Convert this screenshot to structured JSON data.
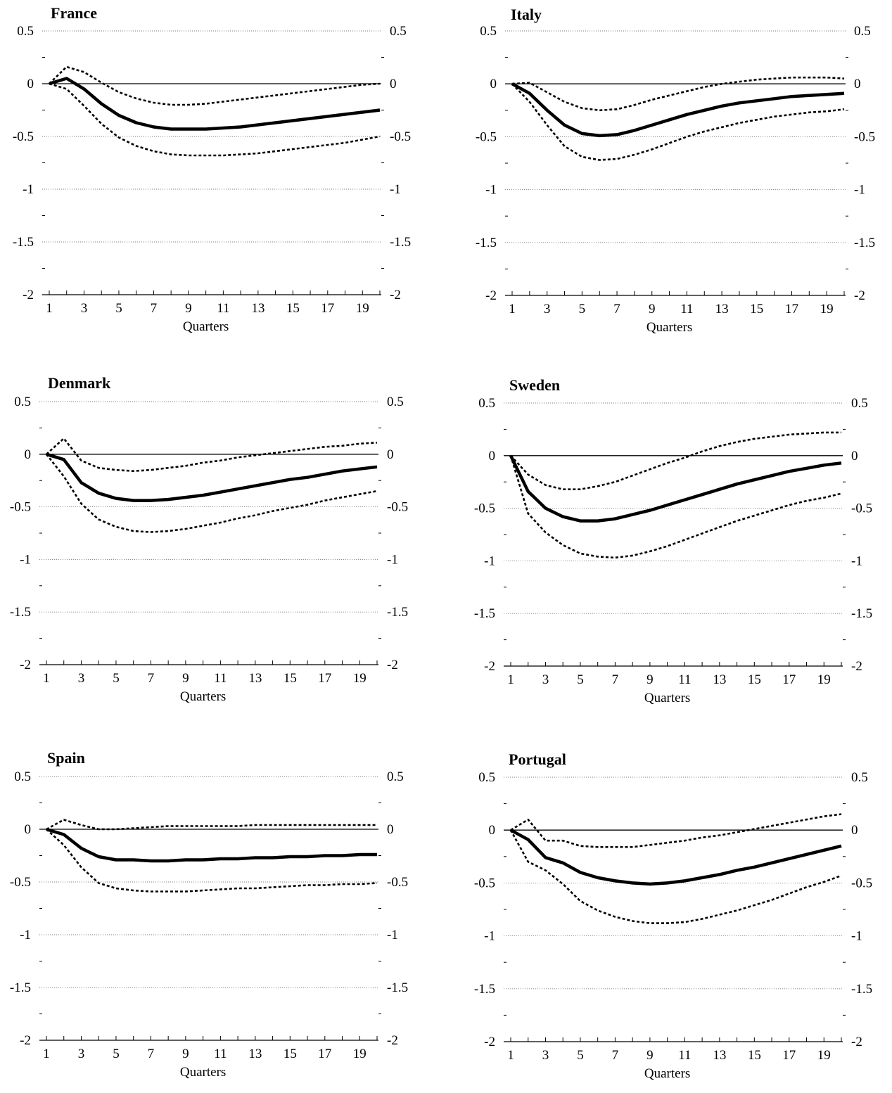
{
  "chart_data": [
    {
      "type": "line",
      "title": "France",
      "xlabel": "Quarters",
      "x": [
        1,
        2,
        3,
        4,
        5,
        6,
        7,
        8,
        9,
        10,
        11,
        12,
        13,
        14,
        15,
        16,
        17,
        18,
        19,
        20
      ],
      "xticks": [
        "1",
        "3",
        "5",
        "7",
        "9",
        "11",
        "13",
        "15",
        "17",
        "19"
      ],
      "ylim": [
        -2,
        0.5
      ],
      "yticks": [
        "0.5",
        "0",
        "-0.5",
        "-1",
        "-1.5",
        "-2"
      ],
      "series": [
        {
          "style": "solid-thick",
          "values": [
            0,
            0.05,
            -0.05,
            -0.19,
            -0.3,
            -0.37,
            -0.41,
            -0.43,
            -0.43,
            -0.43,
            -0.42,
            -0.41,
            -0.39,
            -0.37,
            -0.35,
            -0.33,
            -0.31,
            -0.29,
            -0.27,
            -0.25
          ]
        },
        {
          "style": "dotted",
          "values": [
            0,
            0.16,
            0.11,
            0.01,
            -0.08,
            -0.14,
            -0.18,
            -0.2,
            -0.2,
            -0.19,
            -0.17,
            -0.15,
            -0.13,
            -0.11,
            -0.09,
            -0.07,
            -0.05,
            -0.03,
            -0.01,
            0.0
          ]
        },
        {
          "style": "dotted",
          "values": [
            0,
            -0.05,
            -0.21,
            -0.38,
            -0.51,
            -0.59,
            -0.64,
            -0.67,
            -0.68,
            -0.68,
            -0.68,
            -0.67,
            -0.66,
            -0.64,
            -0.62,
            -0.6,
            -0.58,
            -0.56,
            -0.53,
            -0.5
          ]
        }
      ]
    },
    {
      "type": "line",
      "title": "Italy",
      "xlabel": "Quarters",
      "x": [
        1,
        2,
        3,
        4,
        5,
        6,
        7,
        8,
        9,
        10,
        11,
        12,
        13,
        14,
        15,
        16,
        17,
        18,
        19,
        20
      ],
      "xticks": [
        "1",
        "3",
        "5",
        "7",
        "9",
        "11",
        "13",
        "15",
        "17",
        "19"
      ],
      "ylim": [
        -2,
        0.5
      ],
      "yticks": [
        "0.5",
        "0",
        "-0.5",
        "-1",
        "-1.5",
        "-2"
      ],
      "series": [
        {
          "style": "solid-thick",
          "values": [
            0,
            -0.09,
            -0.25,
            -0.39,
            -0.47,
            -0.49,
            -0.48,
            -0.44,
            -0.39,
            -0.34,
            -0.29,
            -0.25,
            -0.21,
            -0.18,
            -0.16,
            -0.14,
            -0.12,
            -0.11,
            -0.1,
            -0.09
          ]
        },
        {
          "style": "dotted",
          "values": [
            0,
            0.01,
            -0.08,
            -0.17,
            -0.23,
            -0.25,
            -0.24,
            -0.2,
            -0.15,
            -0.11,
            -0.07,
            -0.03,
            0.0,
            0.02,
            0.04,
            0.05,
            0.06,
            0.06,
            0.06,
            0.05
          ]
        },
        {
          "style": "dotted",
          "values": [
            0,
            -0.17,
            -0.39,
            -0.59,
            -0.69,
            -0.72,
            -0.71,
            -0.67,
            -0.62,
            -0.56,
            -0.5,
            -0.45,
            -0.41,
            -0.37,
            -0.34,
            -0.31,
            -0.29,
            -0.27,
            -0.26,
            -0.24
          ]
        }
      ]
    },
    {
      "type": "line",
      "title": "Denmark",
      "xlabel": "Quarters",
      "x": [
        1,
        2,
        3,
        4,
        5,
        6,
        7,
        8,
        9,
        10,
        11,
        12,
        13,
        14,
        15,
        16,
        17,
        18,
        19,
        20
      ],
      "xticks": [
        "1",
        "3",
        "5",
        "7",
        "9",
        "11",
        "13",
        "15",
        "17",
        "19"
      ],
      "ylim": [
        -2,
        0.5
      ],
      "yticks": [
        "0.5",
        "0",
        "-0.5",
        "-1",
        "-1.5",
        "-2"
      ],
      "series": [
        {
          "style": "solid-thick",
          "values": [
            0,
            -0.05,
            -0.27,
            -0.37,
            -0.42,
            -0.44,
            -0.44,
            -0.43,
            -0.41,
            -0.39,
            -0.36,
            -0.33,
            -0.3,
            -0.27,
            -0.24,
            -0.22,
            -0.19,
            -0.16,
            -0.14,
            -0.12
          ]
        },
        {
          "style": "dotted",
          "values": [
            0,
            0.15,
            -0.06,
            -0.13,
            -0.15,
            -0.16,
            -0.15,
            -0.13,
            -0.11,
            -0.08,
            -0.06,
            -0.03,
            -0.01,
            0.01,
            0.03,
            0.05,
            0.07,
            0.08,
            0.1,
            0.11
          ]
        },
        {
          "style": "dotted",
          "values": [
            0,
            -0.21,
            -0.47,
            -0.62,
            -0.69,
            -0.73,
            -0.74,
            -0.73,
            -0.71,
            -0.68,
            -0.65,
            -0.61,
            -0.58,
            -0.54,
            -0.51,
            -0.48,
            -0.44,
            -0.41,
            -0.38,
            -0.35
          ]
        }
      ]
    },
    {
      "type": "line",
      "title": "Sweden",
      "xlabel": "Quarters",
      "x": [
        1,
        2,
        3,
        4,
        5,
        6,
        7,
        8,
        9,
        10,
        11,
        12,
        13,
        14,
        15,
        16,
        17,
        18,
        19,
        20
      ],
      "xticks": [
        "1",
        "3",
        "5",
        "7",
        "9",
        "11",
        "13",
        "15",
        "17",
        "19"
      ],
      "ylim": [
        -2,
        0.5
      ],
      "yticks": [
        "0.5",
        "0",
        "-0.5",
        "-1",
        "-1.5",
        "-2"
      ],
      "series": [
        {
          "style": "solid-thick",
          "values": [
            0,
            -0.34,
            -0.5,
            -0.58,
            -0.62,
            -0.62,
            -0.6,
            -0.56,
            -0.52,
            -0.47,
            -0.42,
            -0.37,
            -0.32,
            -0.27,
            -0.23,
            -0.19,
            -0.15,
            -0.12,
            -0.09,
            -0.07
          ]
        },
        {
          "style": "dotted",
          "values": [
            0,
            -0.18,
            -0.28,
            -0.32,
            -0.32,
            -0.29,
            -0.25,
            -0.19,
            -0.13,
            -0.07,
            -0.02,
            0.04,
            0.09,
            0.13,
            0.16,
            0.18,
            0.2,
            0.21,
            0.22,
            0.22
          ]
        },
        {
          "style": "dotted",
          "values": [
            0,
            -0.55,
            -0.73,
            -0.85,
            -0.93,
            -0.96,
            -0.97,
            -0.95,
            -0.91,
            -0.86,
            -0.8,
            -0.74,
            -0.68,
            -0.62,
            -0.57,
            -0.52,
            -0.47,
            -0.43,
            -0.4,
            -0.36
          ]
        }
      ]
    },
    {
      "type": "line",
      "title": "Spain",
      "xlabel": "Quarters",
      "x": [
        1,
        2,
        3,
        4,
        5,
        6,
        7,
        8,
        9,
        10,
        11,
        12,
        13,
        14,
        15,
        16,
        17,
        18,
        19,
        20
      ],
      "xticks": [
        "1",
        "3",
        "5",
        "7",
        "9",
        "11",
        "13",
        "15",
        "17",
        "19"
      ],
      "ylim": [
        -2,
        0.5
      ],
      "yticks": [
        "0.5",
        "0",
        "-0.5",
        "-1",
        "-1.5",
        "-2"
      ],
      "series": [
        {
          "style": "solid-thick",
          "values": [
            0,
            -0.05,
            -0.18,
            -0.26,
            -0.29,
            -0.29,
            -0.3,
            -0.3,
            -0.29,
            -0.29,
            -0.28,
            -0.28,
            -0.27,
            -0.27,
            -0.26,
            -0.26,
            -0.25,
            -0.25,
            -0.24,
            -0.24
          ]
        },
        {
          "style": "dotted",
          "values": [
            0,
            0.09,
            0.04,
            0.0,
            0.0,
            0.01,
            0.02,
            0.03,
            0.03,
            0.03,
            0.03,
            0.03,
            0.04,
            0.04,
            0.04,
            0.04,
            0.04,
            0.04,
            0.04,
            0.04
          ]
        },
        {
          "style": "dotted",
          "values": [
            0,
            -0.15,
            -0.36,
            -0.51,
            -0.56,
            -0.58,
            -0.59,
            -0.59,
            -0.59,
            -0.58,
            -0.57,
            -0.56,
            -0.56,
            -0.55,
            -0.54,
            -0.53,
            -0.53,
            -0.52,
            -0.52,
            -0.51
          ]
        }
      ]
    },
    {
      "type": "line",
      "title": "Portugal",
      "xlabel": "Quarters",
      "x": [
        1,
        2,
        3,
        4,
        5,
        6,
        7,
        8,
        9,
        10,
        11,
        12,
        13,
        14,
        15,
        16,
        17,
        18,
        19,
        20
      ],
      "xticks": [
        "1",
        "3",
        "5",
        "7",
        "9",
        "11",
        "13",
        "15",
        "17",
        "19"
      ],
      "ylim": [
        -2,
        0.5
      ],
      "yticks": [
        "0.5",
        "0",
        "-0.5",
        "-1",
        "-1.5",
        "-2"
      ],
      "series": [
        {
          "style": "solid-thick",
          "values": [
            0,
            -0.09,
            -0.26,
            -0.31,
            -0.4,
            -0.45,
            -0.48,
            -0.5,
            -0.51,
            -0.5,
            -0.48,
            -0.45,
            -0.42,
            -0.38,
            -0.35,
            -0.31,
            -0.27,
            -0.23,
            -0.19,
            -0.15
          ]
        },
        {
          "style": "dotted",
          "values": [
            0,
            0.1,
            -0.1,
            -0.1,
            -0.15,
            -0.16,
            -0.16,
            -0.16,
            -0.14,
            -0.12,
            -0.1,
            -0.07,
            -0.05,
            -0.02,
            0.01,
            0.04,
            0.07,
            0.1,
            0.13,
            0.15
          ]
        },
        {
          "style": "dotted",
          "values": [
            0,
            -0.3,
            -0.38,
            -0.51,
            -0.67,
            -0.76,
            -0.82,
            -0.86,
            -0.88,
            -0.88,
            -0.87,
            -0.84,
            -0.8,
            -0.76,
            -0.71,
            -0.66,
            -0.6,
            -0.54,
            -0.49,
            -0.43
          ]
        }
      ]
    }
  ],
  "colors": {
    "ink": "#000000",
    "grid": "#7a7a7a"
  }
}
